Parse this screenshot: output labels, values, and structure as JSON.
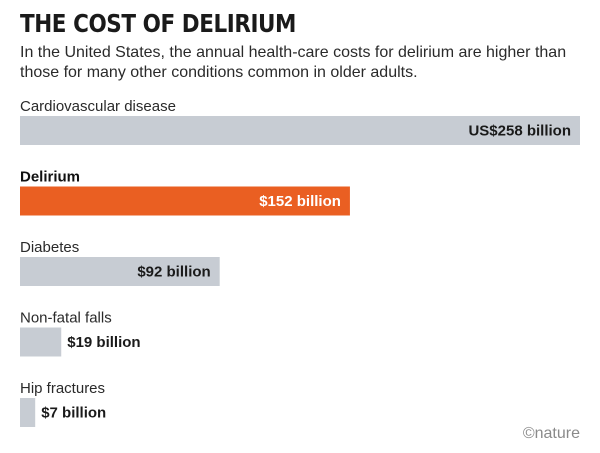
{
  "header": {
    "title": "THE COST OF DELIRIUM",
    "subtitle": "In the United States, the annual health-care costs for delirium are higher than those for many other conditions common in older adults."
  },
  "credit": "©nature",
  "colors": {
    "bar": "#c7ccd3",
    "highlight": "#ea5f22"
  },
  "chart_data": {
    "type": "bar",
    "orientation": "horizontal",
    "categories": [
      "Cardiovascular disease",
      "Delirium",
      "Diabetes",
      "Non-fatal falls",
      "Hip fractures"
    ],
    "values": [
      258,
      152,
      92,
      19,
      7
    ],
    "value_labels": [
      "US$258 billion",
      "$152 billion",
      "$92 billion",
      "$19 billion",
      "$7 billion"
    ],
    "highlight": "Delirium",
    "xlim": [
      0,
      258
    ],
    "grid": false
  }
}
